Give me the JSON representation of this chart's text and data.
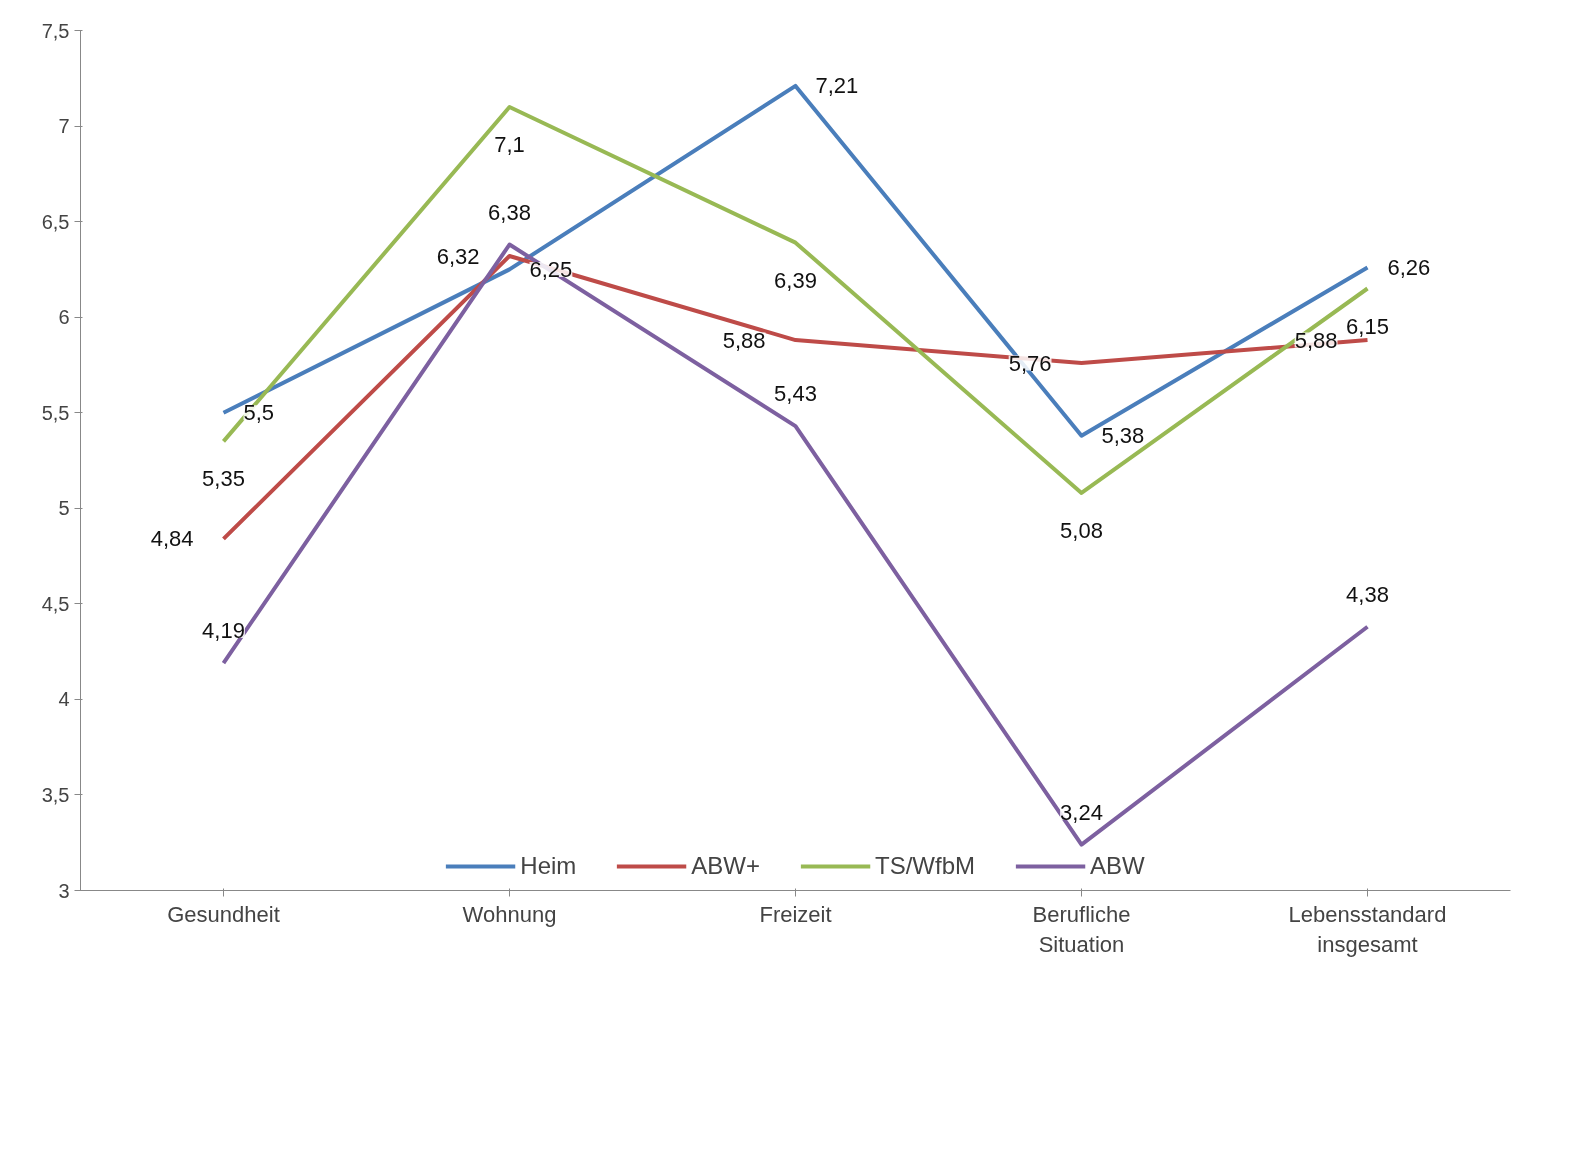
{
  "chart_data": {
    "type": "line",
    "categories": [
      "Gesundheit",
      "Wohnung",
      "Freizeit",
      "Berufliche\nSituation",
      "Lebensstandard\ninsgesamt"
    ],
    "ylim": [
      3,
      7.5
    ],
    "yticks": [
      3,
      {
        "value": 3.5,
        "label": "3,5"
      },
      4,
      {
        "value": 4.5,
        "label": "4,5"
      },
      5,
      {
        "value": 5.5,
        "label": "5,5"
      },
      6,
      {
        "value": 6.5,
        "label": "6,5"
      },
      7,
      {
        "value": 7.5,
        "label": "7,5"
      }
    ],
    "grid": false,
    "legend": "bottom",
    "marker": "none",
    "line_style": "solid",
    "series": [
      {
        "name": "Heim",
        "color": "#4a7ebb",
        "values": [
          5.5,
          6.25,
          7.21,
          5.38,
          6.26
        ],
        "value_labels": [
          "5,5",
          "6,25",
          "7,21",
          "5,38",
          "6,26"
        ]
      },
      {
        "name": "ABW+",
        "color": "#be4b48",
        "values": [
          4.84,
          6.32,
          5.88,
          5.76,
          5.88
        ],
        "value_labels": [
          "4,84",
          "6,32",
          "5,88",
          "5,76",
          "5,88"
        ]
      },
      {
        "name": "TS/WfbM",
        "color": "#98b954",
        "values": [
          5.35,
          7.1,
          6.39,
          5.08,
          6.15
        ],
        "value_labels": [
          "5,35",
          "7,1",
          "6,39",
          "5,08",
          "6,15"
        ]
      },
      {
        "name": "ABW",
        "color": "#7d60a0",
        "values": [
          4.19,
          6.38,
          5.43,
          3.24,
          4.38
        ],
        "value_labels": [
          "4,19",
          "6,38",
          "5,43",
          "3,24",
          "4,38"
        ]
      }
    ]
  }
}
